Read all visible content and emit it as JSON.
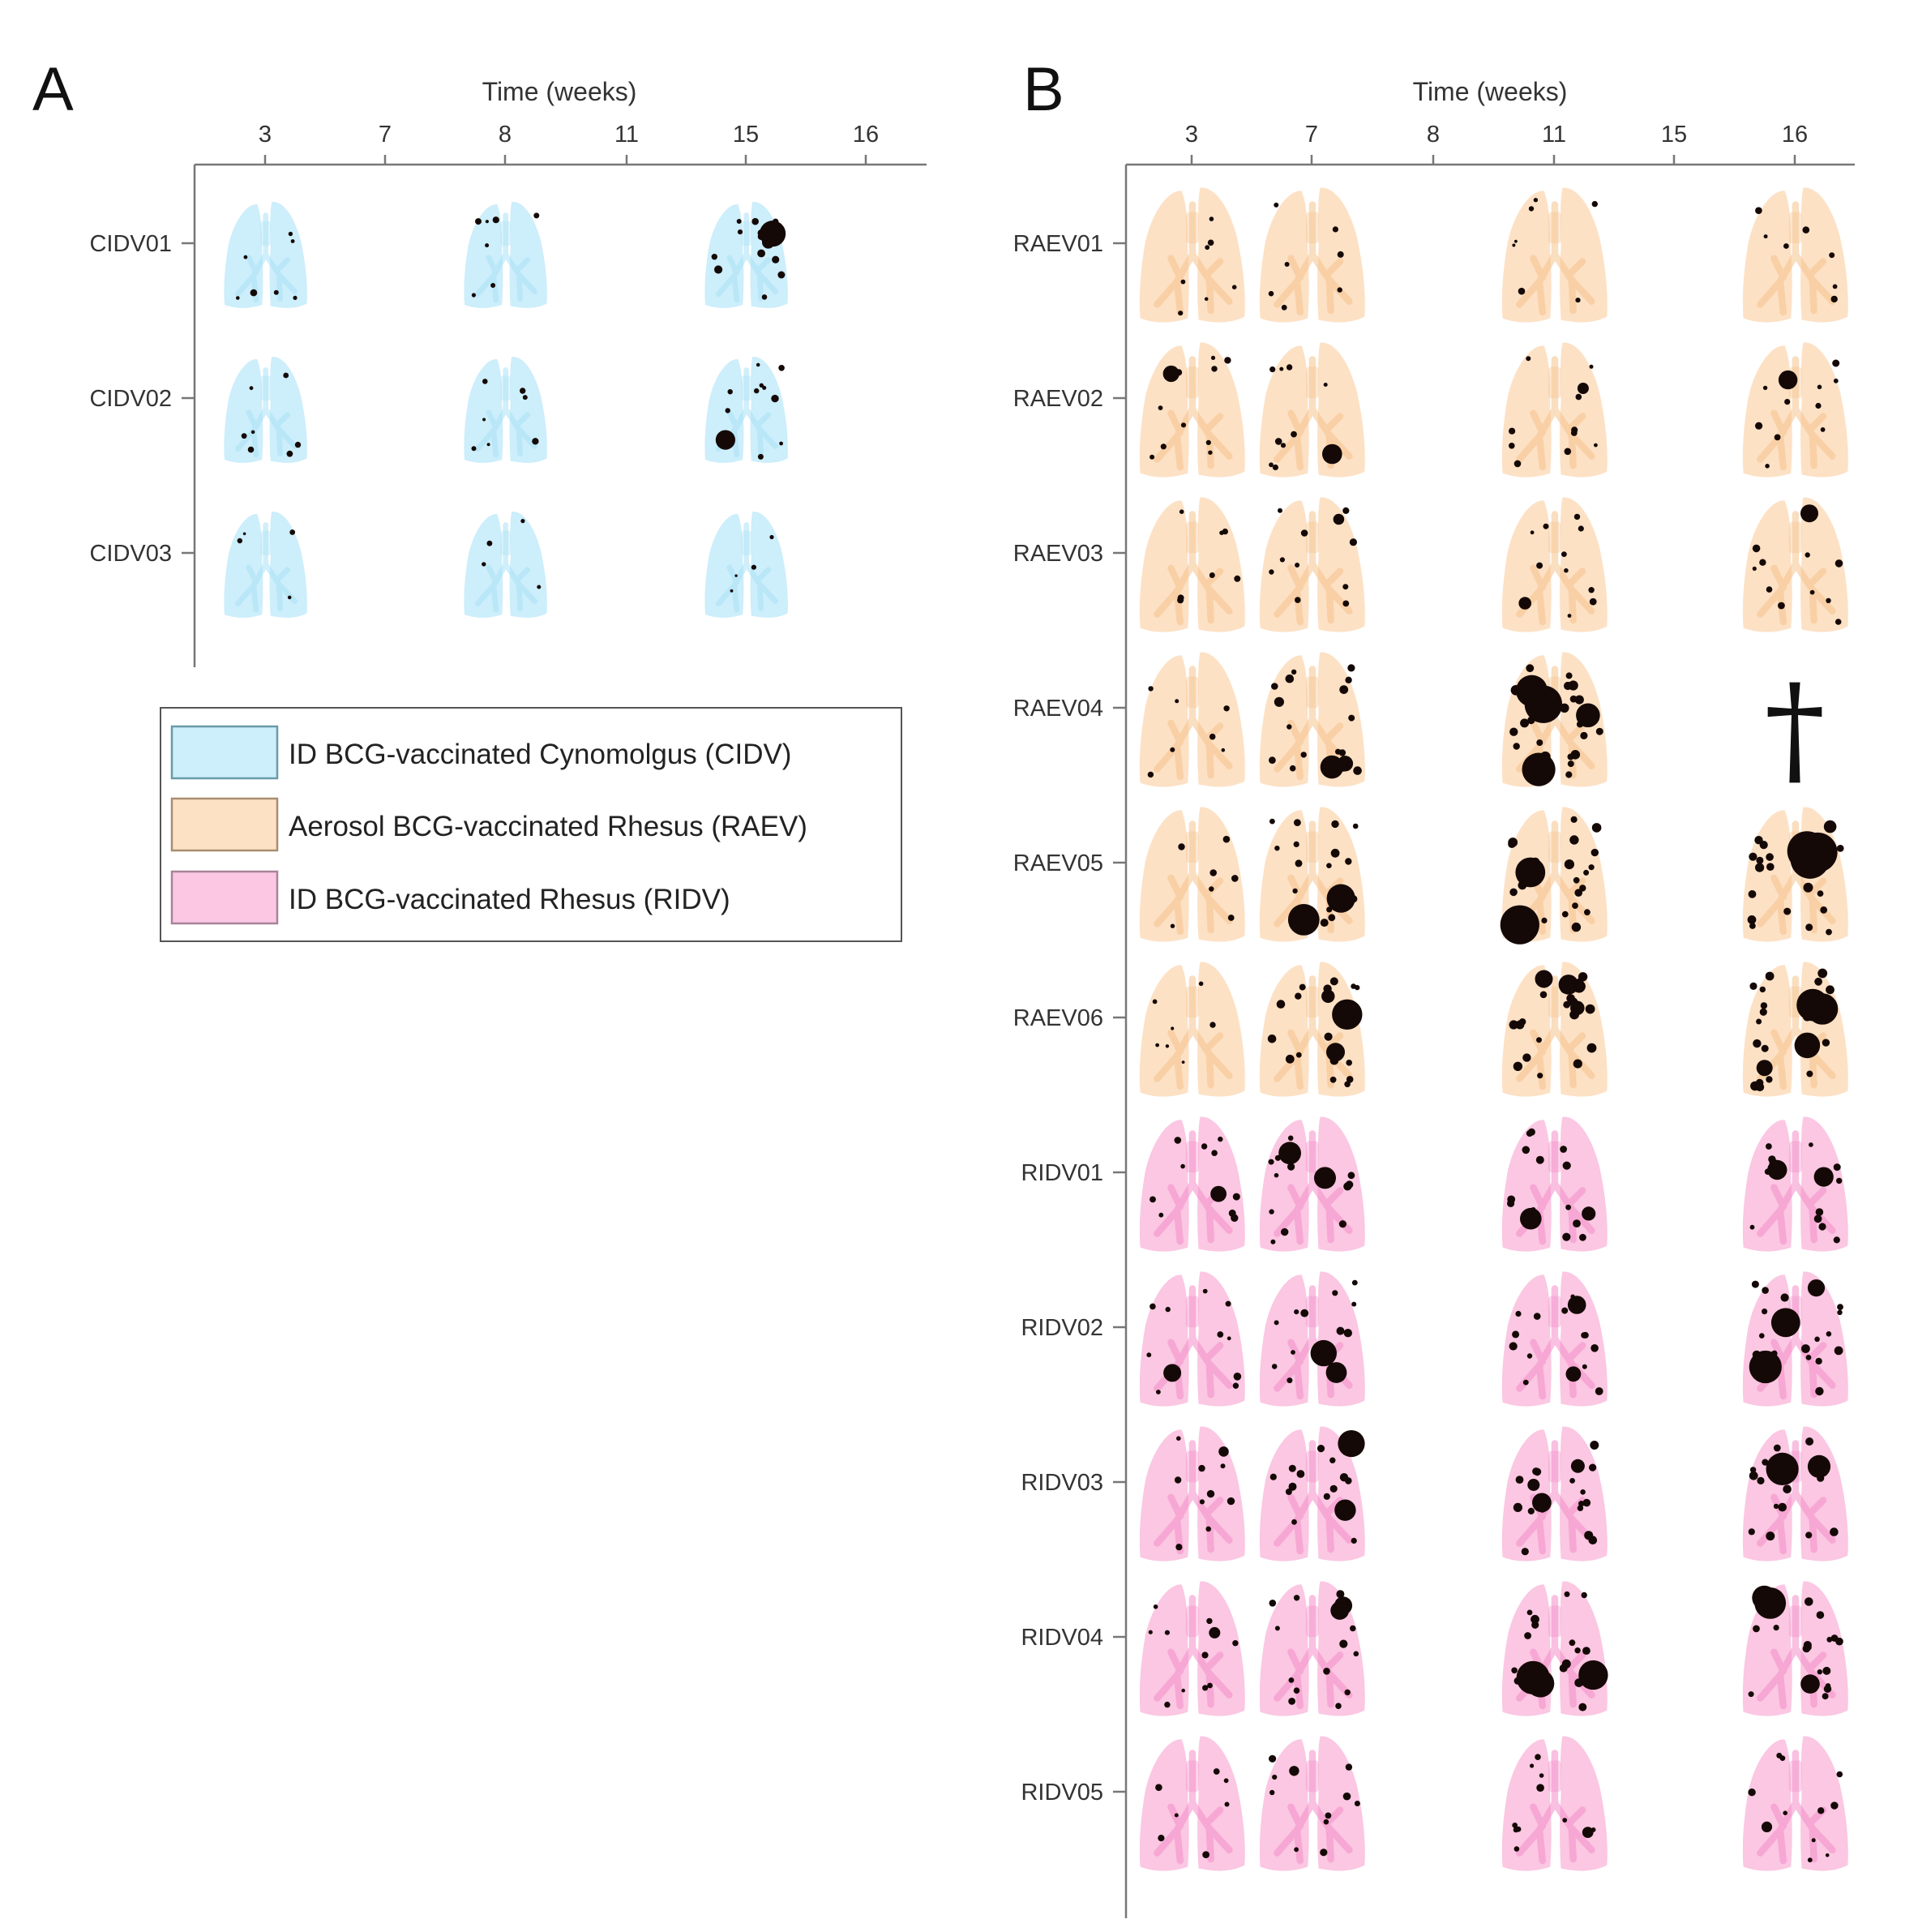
{
  "colors": {
    "cidv": "#cdeefb",
    "raev": "#fde1c5",
    "ridv": "#fbc7e2",
    "cidv_airway": "#a9e1f6",
    "raev_airway": "#f6c28c",
    "ridv_airway": "#f48cc8",
    "lesion": "#140906",
    "axis": "#777777"
  },
  "legend": [
    {
      "group": "CIDV",
      "label": "ID BCG-vaccinated Cynomolgus (CIDV)"
    },
    {
      "group": "RAEV",
      "label": "Aerosol BCG-vaccinated  Rhesus (RAEV)"
    },
    {
      "group": "RIDV",
      "label": "ID BCG-vaccinated  Rhesus (RIDV)"
    }
  ],
  "chart_data": [
    {
      "panel": "A",
      "type": "scatter",
      "title": "",
      "xlabel": "Time (weeks)",
      "ylabel": "",
      "x_ticks": [
        "3",
        "7",
        "8",
        "11",
        "15",
        "16"
      ],
      "rows": [
        {
          "id": "CIDV01",
          "group": "CIDV",
          "scans": {
            "3": 1,
            "8": 1,
            "15": 3
          }
        },
        {
          "id": "CIDV02",
          "group": "CIDV",
          "scans": {
            "3": 1,
            "8": 1,
            "15": 2
          }
        },
        {
          "id": "CIDV03",
          "group": "CIDV",
          "scans": {
            "3": 0,
            "8": 0,
            "15": 0
          }
        }
      ]
    },
    {
      "panel": "B",
      "type": "scatter",
      "title": "",
      "xlabel": "Time (weeks)",
      "ylabel": "",
      "x_ticks": [
        "3",
        "7",
        "8",
        "11",
        "15",
        "16"
      ],
      "death_marker": {
        "id": "RAEV04",
        "week": "16",
        "symbol": "†"
      },
      "rows": [
        {
          "id": "RAEV01",
          "group": "RAEV",
          "scans": {
            "3": 1,
            "7": 1,
            "11": 1,
            "16": 1
          }
        },
        {
          "id": "RAEV02",
          "group": "RAEV",
          "scans": {
            "3": 2,
            "7": 2,
            "11": 2,
            "16": 2
          }
        },
        {
          "id": "RAEV03",
          "group": "RAEV",
          "scans": {
            "3": 1,
            "7": 2,
            "11": 2,
            "16": 2
          }
        },
        {
          "id": "RAEV04",
          "group": "RAEV",
          "scans": {
            "3": 1,
            "7": 4,
            "11": 6
          }
        },
        {
          "id": "RAEV05",
          "group": "RAEV",
          "scans": {
            "3": 1,
            "7": 4,
            "11": 5,
            "16": 5
          }
        },
        {
          "id": "RAEV06",
          "group": "RAEV",
          "scans": {
            "3": 1,
            "7": 4,
            "11": 5,
            "16": 5
          }
        },
        {
          "id": "RIDV01",
          "group": "RIDV",
          "scans": {
            "3": 2,
            "7": 3,
            "11": 3,
            "16": 3
          }
        },
        {
          "id": "RIDV02",
          "group": "RIDV",
          "scans": {
            "3": 2,
            "7": 3,
            "11": 3,
            "16": 4
          }
        },
        {
          "id": "RIDV03",
          "group": "RIDV",
          "scans": {
            "3": 2,
            "7": 3,
            "11": 4,
            "16": 4
          }
        },
        {
          "id": "RIDV04",
          "group": "RIDV",
          "scans": {
            "3": 2,
            "7": 3,
            "11": 4,
            "16": 4
          }
        },
        {
          "id": "RIDV05",
          "group": "RIDV",
          "scans": {
            "3": 1,
            "7": 2,
            "11": 2,
            "16": 2
          }
        }
      ]
    }
  ]
}
